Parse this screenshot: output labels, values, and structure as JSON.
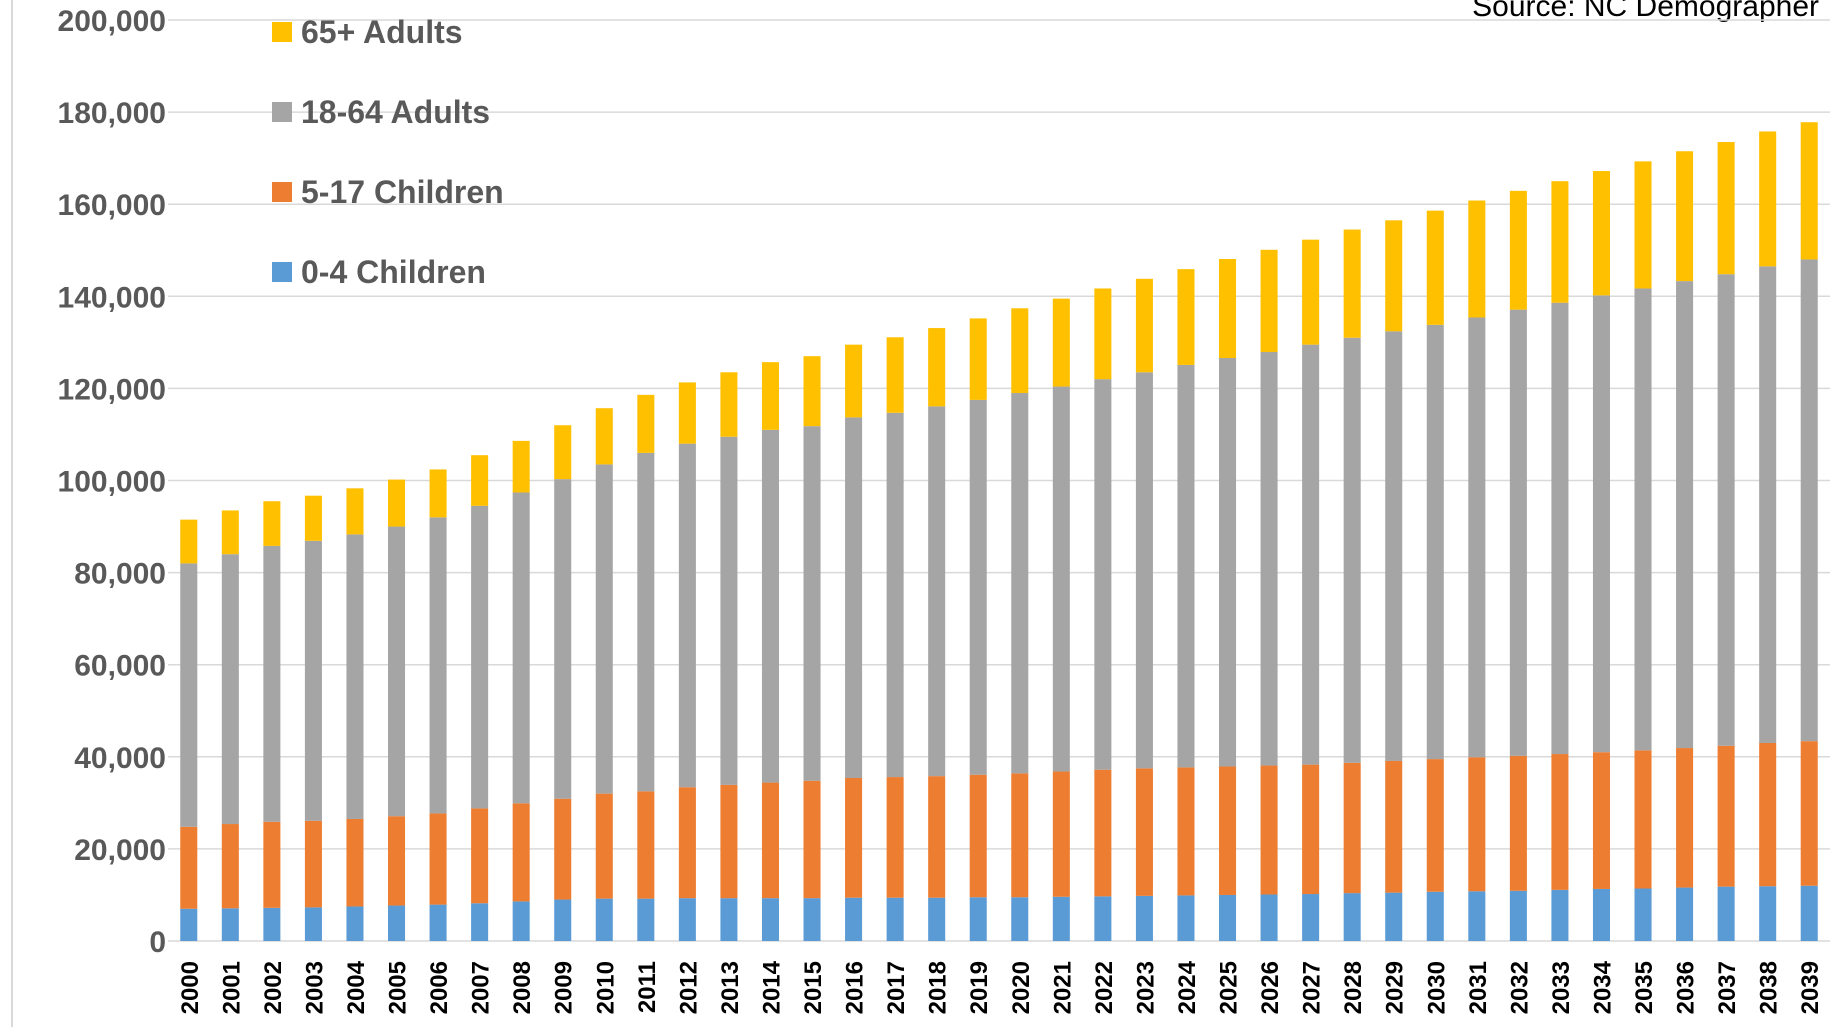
{
  "source_note": "Source: NC Demographer",
  "chart_data": {
    "type": "bar",
    "stacked": true,
    "title": "",
    "xlabel": "",
    "ylabel": "",
    "ylim": [
      0,
      200000
    ],
    "yticks": [
      "0",
      "20,000",
      "40,000",
      "60,000",
      "80,000",
      "100,000",
      "120,000",
      "140,000",
      "160,000",
      "180,000",
      "200,000"
    ],
    "grid": true,
    "legend_position": "top-left",
    "categories": [
      "2000",
      "2001",
      "2002",
      "2003",
      "2004",
      "2005",
      "2006",
      "2007",
      "2008",
      "2009",
      "2010",
      "2011",
      "2012",
      "2013",
      "2014",
      "2015",
      "2016",
      "2017",
      "2018",
      "2019",
      "2020",
      "2021",
      "2022",
      "2023",
      "2024",
      "2025",
      "2026",
      "2027",
      "2028",
      "2029",
      "2030",
      "2031",
      "2032",
      "2033",
      "2034",
      "2035",
      "2036",
      "2037",
      "2038",
      "2039"
    ],
    "series": [
      {
        "name": "0-4 Children",
        "color": "#5B9BD5",
        "values": [
          7000,
          7100,
          7200,
          7300,
          7500,
          7700,
          7900,
          8200,
          8600,
          9000,
          9200,
          9200,
          9300,
          9300,
          9300,
          9300,
          9400,
          9400,
          9400,
          9500,
          9500,
          9600,
          9700,
          9800,
          9900,
          10000,
          10100,
          10200,
          10400,
          10500,
          10700,
          10800,
          10900,
          11100,
          11300,
          11400,
          11600,
          11800,
          11900,
          12000
        ]
      },
      {
        "name": "5-17 Children",
        "color": "#ED7D31",
        "values": [
          17800,
          18300,
          18700,
          18800,
          19000,
          19400,
          19800,
          20600,
          21300,
          21900,
          22800,
          23300,
          24100,
          24600,
          25100,
          25500,
          26000,
          26200,
          26400,
          26600,
          26900,
          27200,
          27500,
          27700,
          27800,
          27900,
          28000,
          28100,
          28300,
          28600,
          28800,
          29100,
          29300,
          29500,
          29700,
          30000,
          30300,
          30600,
          31100,
          31400
        ]
      },
      {
        "name": "18-64 Adults",
        "color": "#A5A5A5",
        "values": [
          57200,
          58600,
          59900,
          60800,
          61800,
          62900,
          64300,
          65700,
          67500,
          69400,
          71500,
          73500,
          74600,
          75600,
          76600,
          77000,
          78300,
          79100,
          80300,
          81400,
          82600,
          83600,
          84800,
          86000,
          87400,
          88700,
          89800,
          91200,
          92300,
          93300,
          94300,
          95500,
          96900,
          98000,
          99200,
          100300,
          101400,
          102400,
          103500,
          104600
        ]
      },
      {
        "name": "65+ Adults",
        "color": "#FFC000",
        "values": [
          9500,
          9500,
          9700,
          9800,
          10000,
          10200,
          10400,
          11000,
          11200,
          11700,
          12200,
          12600,
          13300,
          14000,
          14700,
          15200,
          15800,
          16400,
          17000,
          17700,
          18400,
          19100,
          19700,
          20300,
          20800,
          21500,
          22200,
          22800,
          23500,
          24100,
          24800,
          25400,
          25800,
          26400,
          27000,
          27600,
          28200,
          28700,
          29300,
          29800
        ]
      }
    ]
  }
}
